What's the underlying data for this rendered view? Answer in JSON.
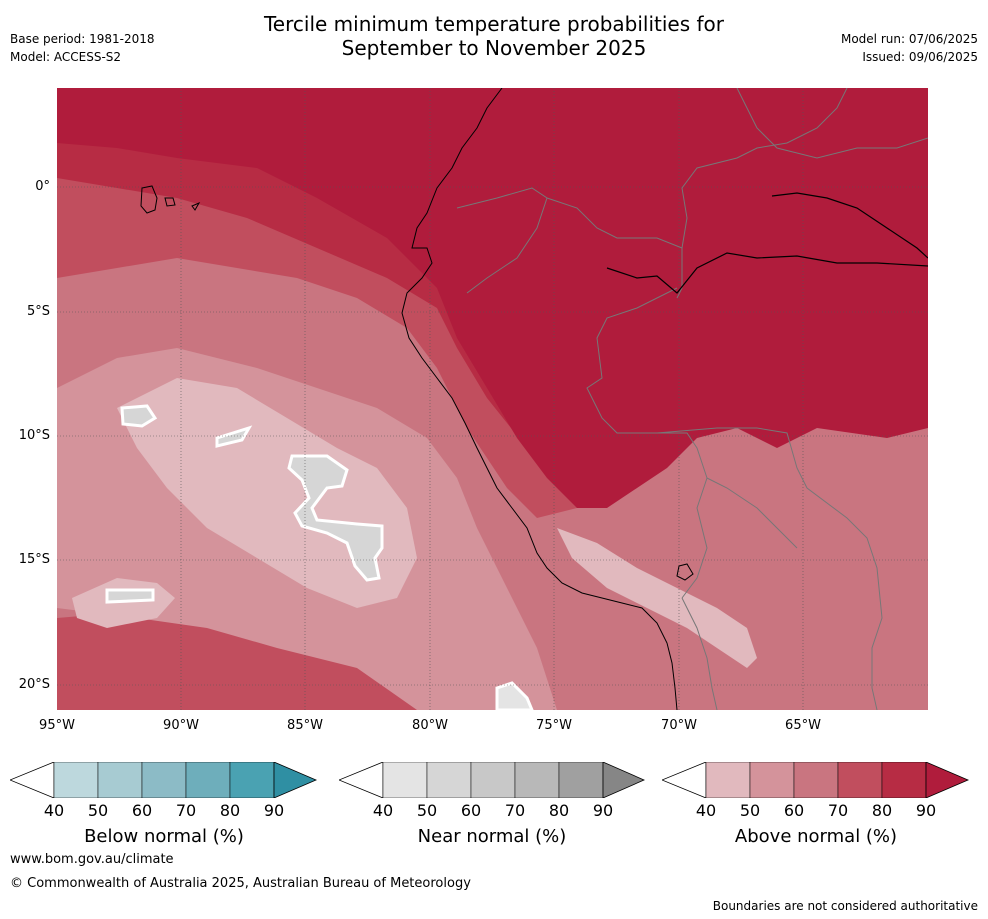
{
  "title_line1": "Tercile minimum temperature probabilities for",
  "title_line2": "September to November 2025",
  "base_period": "Base period: 1981-2018",
  "model": "Model: ACCESS-S2",
  "model_run": "Model run: 07/06/2025",
  "issued": "Issued: 09/06/2025",
  "map": {
    "lat_labels": [
      "0°",
      "5°S",
      "10°S",
      "15°S",
      "20°S"
    ],
    "lon_labels": [
      "95°W",
      "90°W",
      "85°W",
      "80°W",
      "75°W",
      "70°W",
      "65°W"
    ]
  },
  "colorbars": {
    "below": {
      "label": "Below normal (%)",
      "ticks": [
        "40",
        "50",
        "60",
        "70",
        "80",
        "90"
      ],
      "colors": [
        "#bdd8dd",
        "#a7cbd2",
        "#8cbbc6",
        "#6eaebb",
        "#4aa2b2",
        "#2f8fa3"
      ]
    },
    "near": {
      "label": "Near normal (%)",
      "ticks": [
        "40",
        "50",
        "60",
        "70",
        "80",
        "90"
      ],
      "colors": [
        "#e4e4e4",
        "#d6d6d6",
        "#c8c8c8",
        "#b8b8b8",
        "#a0a0a0",
        "#868686"
      ]
    },
    "above": {
      "label": "Above normal (%)",
      "ticks": [
        "40",
        "50",
        "60",
        "70",
        "80",
        "90"
      ],
      "colors": [
        "#e1b9be",
        "#d4939b",
        "#c97580",
        "#c14e5e",
        "#b72c44",
        "#b01c3c"
      ]
    }
  },
  "footer": {
    "url": "www.bom.gov.au/climate",
    "copyright": "© Commonwealth of Australia 2025, Australian Bureau of Meteorology",
    "disclaimer": "Boundaries are not considered authoritative"
  }
}
